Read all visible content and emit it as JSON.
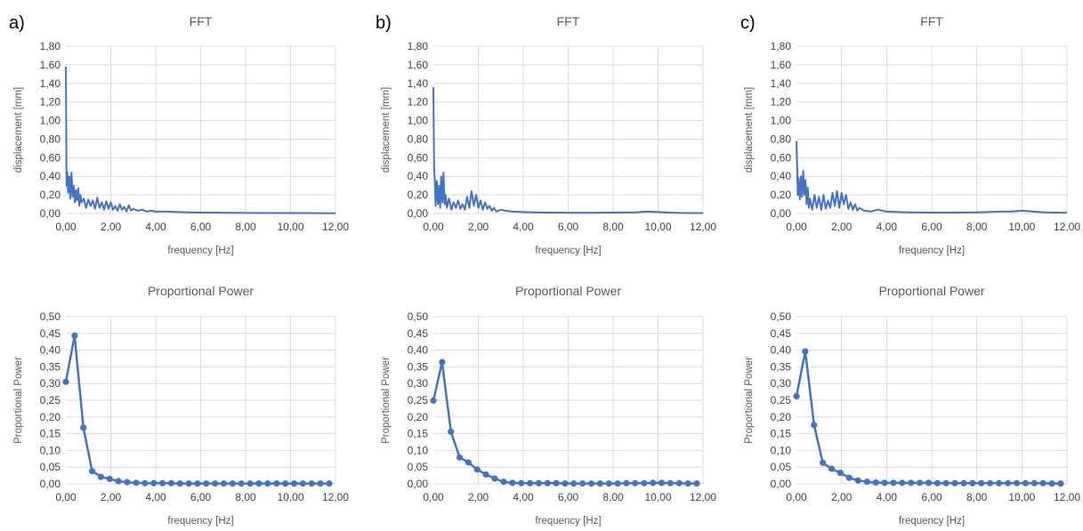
{
  "panel_labels": [
    "a)",
    "b)",
    "c)"
  ],
  "colors": {
    "series": "#4472c4",
    "grid": "#d9d9d9",
    "text": "#595959"
  },
  "chart_data": [
    {
      "panel": "a)",
      "type": "line",
      "title": "FFT",
      "xlabel": "frequency [Hz]",
      "ylabel": "displacement [mm]",
      "xlim": [
        0,
        12
      ],
      "ylim": [
        0,
        1.8
      ],
      "xstep": 2,
      "ystep": 0.2,
      "xticks": [
        "0,00",
        "2,00",
        "4,00",
        "6,00",
        "8,00",
        "10,00",
        "12,00"
      ],
      "yticks": [
        "0,00",
        "0,20",
        "0,40",
        "0,60",
        "0,80",
        "1,00",
        "1,20",
        "1,40",
        "1,60",
        "1,80"
      ],
      "grid": true,
      "legend": "none",
      "markers": false,
      "series": [
        {
          "x": [
            0,
            0.03,
            0.06,
            0.1,
            0.15,
            0.2,
            0.25,
            0.3,
            0.35,
            0.4,
            0.45,
            0.5,
            0.55,
            0.6,
            0.65,
            0.7,
            0.8,
            0.9,
            1,
            1.1,
            1.2,
            1.3,
            1.4,
            1.5,
            1.6,
            1.7,
            1.8,
            1.9,
            2,
            2.1,
            2.2,
            2.3,
            2.4,
            2.5,
            2.6,
            2.7,
            2.8,
            2.9,
            3,
            3.2,
            3.4,
            3.6,
            3.8,
            4,
            4.5,
            5,
            5.5,
            6,
            6.5,
            7,
            8,
            9,
            10,
            11,
            12
          ],
          "y": [
            1.58,
            0.3,
            0.45,
            0.22,
            0.4,
            0.16,
            0.44,
            0.18,
            0.3,
            0.12,
            0.25,
            0.14,
            0.27,
            0.08,
            0.2,
            0.12,
            0.16,
            0.06,
            0.15,
            0.08,
            0.14,
            0.05,
            0.17,
            0.06,
            0.12,
            0.04,
            0.13,
            0.05,
            0.12,
            0.04,
            0.08,
            0.03,
            0.1,
            0.04,
            0.07,
            0.02,
            0.09,
            0.03,
            0.05,
            0.03,
            0.04,
            0.02,
            0.03,
            0.02,
            0.02,
            0.015,
            0.012,
            0.01,
            0.01,
            0.008,
            0.006,
            0.005,
            0.005,
            0.004,
            0.003
          ]
        }
      ]
    },
    {
      "panel": "b)",
      "type": "line",
      "title": "FFT",
      "xlabel": "frequency [Hz]",
      "ylabel": "displacement [mm]",
      "xlim": [
        0,
        12
      ],
      "ylim": [
        0,
        1.8
      ],
      "xstep": 2,
      "ystep": 0.2,
      "xticks": [
        "0,00",
        "2,00",
        "4,00",
        "6,00",
        "8,00",
        "10,00",
        "12,00"
      ],
      "yticks": [
        "0,00",
        "0,20",
        "0,40",
        "0,60",
        "0,80",
        "1,00",
        "1,20",
        "1,40",
        "1,60",
        "1,80"
      ],
      "grid": true,
      "legend": "none",
      "markers": false,
      "series": [
        {
          "x": [
            0,
            0.03,
            0.06,
            0.1,
            0.15,
            0.2,
            0.25,
            0.3,
            0.35,
            0.4,
            0.45,
            0.5,
            0.55,
            0.6,
            0.7,
            0.8,
            0.9,
            1,
            1.1,
            1.2,
            1.3,
            1.4,
            1.5,
            1.6,
            1.7,
            1.8,
            1.9,
            2,
            2.1,
            2.2,
            2.3,
            2.4,
            2.5,
            2.6,
            2.7,
            2.8,
            3,
            3.2,
            3.5,
            4,
            4.5,
            5,
            6,
            7,
            8,
            9,
            9.5,
            10,
            10.5,
            11,
            12
          ],
          "y": [
            1.36,
            0.5,
            0.38,
            0.08,
            0.35,
            0.1,
            0.3,
            0.06,
            0.4,
            0.12,
            0.44,
            0.1,
            0.2,
            0.06,
            0.16,
            0.04,
            0.12,
            0.06,
            0.14,
            0.05,
            0.1,
            0.04,
            0.18,
            0.06,
            0.24,
            0.08,
            0.2,
            0.06,
            0.14,
            0.04,
            0.12,
            0.05,
            0.08,
            0.03,
            0.06,
            0.02,
            0.04,
            0.03,
            0.02,
            0.015,
            0.012,
            0.01,
            0.008,
            0.008,
            0.01,
            0.012,
            0.02,
            0.015,
            0.01,
            0.006,
            0.004
          ]
        }
      ]
    },
    {
      "panel": "c)",
      "type": "line",
      "title": "FFT",
      "xlabel": "frequency [Hz]",
      "ylabel": "displacement [mm]",
      "xlim": [
        0,
        12
      ],
      "ylim": [
        0,
        1.8
      ],
      "xstep": 2,
      "ystep": 0.2,
      "xticks": [
        "0,00",
        "2,00",
        "4,00",
        "6,00",
        "8,00",
        "10,00",
        "12,00"
      ],
      "yticks": [
        "0,00",
        "0,20",
        "0,40",
        "0,60",
        "0,80",
        "1,00",
        "1,20",
        "1,40",
        "1,60",
        "1,80"
      ],
      "grid": true,
      "legend": "none",
      "markers": false,
      "series": [
        {
          "x": [
            0,
            0.03,
            0.06,
            0.1,
            0.15,
            0.2,
            0.25,
            0.3,
            0.35,
            0.4,
            0.45,
            0.5,
            0.55,
            0.6,
            0.7,
            0.8,
            0.9,
            1,
            1.1,
            1.2,
            1.3,
            1.4,
            1.5,
            1.6,
            1.7,
            1.8,
            1.9,
            2,
            2.1,
            2.2,
            2.3,
            2.4,
            2.5,
            2.6,
            2.7,
            2.8,
            3,
            3.3,
            3.6,
            4,
            4.5,
            5,
            6,
            7,
            8,
            8.5,
            9,
            9.5,
            10,
            10.5,
            11,
            12
          ],
          "y": [
            0.78,
            0.5,
            0.2,
            0.38,
            0.15,
            0.4,
            0.18,
            0.46,
            0.2,
            0.36,
            0.1,
            0.28,
            0.06,
            0.16,
            0.04,
            0.2,
            0.06,
            0.18,
            0.04,
            0.2,
            0.05,
            0.14,
            0.06,
            0.22,
            0.08,
            0.24,
            0.06,
            0.22,
            0.1,
            0.2,
            0.05,
            0.12,
            0.04,
            0.1,
            0.03,
            0.06,
            0.03,
            0.02,
            0.04,
            0.02,
            0.015,
            0.012,
            0.01,
            0.01,
            0.012,
            0.015,
            0.02,
            0.02,
            0.03,
            0.02,
            0.012,
            0.008
          ]
        }
      ]
    },
    {
      "panel": "a)",
      "type": "line",
      "title": "Proportional Power",
      "xlabel": "frequency [Hz]",
      "ylabel": "Proportional Power",
      "xlim": [
        0,
        12
      ],
      "ylim": [
        0,
        0.5
      ],
      "xstep": 2,
      "ystep": 0.05,
      "xticks": [
        "0,00",
        "2,00",
        "4,00",
        "6,00",
        "8,00",
        "10,00",
        "12,00"
      ],
      "yticks": [
        "0,00",
        "0,05",
        "0,10",
        "0,15",
        "0,20",
        "0,25",
        "0,30",
        "0,35",
        "0,40",
        "0,45",
        "0,50"
      ],
      "grid": true,
      "legend": "none",
      "markers": true,
      "series": [
        {
          "x": [
            0,
            0.39,
            0.78,
            1.17,
            1.56,
            1.95,
            2.34,
            2.73,
            3.13,
            3.52,
            3.91,
            4.3,
            4.69,
            5.08,
            5.47,
            5.86,
            6.25,
            6.64,
            7.03,
            7.42,
            7.81,
            8.2,
            8.59,
            8.98,
            9.38,
            9.77,
            10.16,
            10.55,
            10.94,
            11.33,
            11.72
          ],
          "y": [
            0.305,
            0.443,
            0.168,
            0.038,
            0.021,
            0.015,
            0.008,
            0.005,
            0.003,
            0.002,
            0.002,
            0.002,
            0.002,
            0.001,
            0.001,
            0.001,
            0.001,
            0.001,
            0.001,
            0.001,
            0.001,
            0.001,
            0.001,
            0.001,
            0.001,
            0.001,
            0.001,
            0.001,
            0.001,
            0.001,
            0.001
          ]
        }
      ]
    },
    {
      "panel": "b)",
      "type": "line",
      "title": "Proportional Power",
      "xlabel": "frequency [Hz]",
      "ylabel": "Proportional Power",
      "xlim": [
        0,
        12
      ],
      "ylim": [
        0,
        0.5
      ],
      "xstep": 2,
      "ystep": 0.05,
      "xticks": [
        "0,00",
        "2,00",
        "4,00",
        "6,00",
        "8,00",
        "10,00",
        "12,00"
      ],
      "yticks": [
        "0,00",
        "0,05",
        "0,10",
        "0,15",
        "0,20",
        "0,25",
        "0,30",
        "0,35",
        "0,40",
        "0,45",
        "0,50"
      ],
      "grid": true,
      "legend": "none",
      "markers": true,
      "series": [
        {
          "x": [
            0,
            0.39,
            0.78,
            1.17,
            1.56,
            1.95,
            2.34,
            2.73,
            3.13,
            3.52,
            3.91,
            4.3,
            4.69,
            5.08,
            5.47,
            5.86,
            6.25,
            6.64,
            7.03,
            7.42,
            7.81,
            8.2,
            8.59,
            8.98,
            9.38,
            9.77,
            10.16,
            10.55,
            10.94,
            11.33,
            11.72
          ],
          "y": [
            0.249,
            0.364,
            0.156,
            0.079,
            0.064,
            0.043,
            0.028,
            0.016,
            0.006,
            0.003,
            0.002,
            0.002,
            0.002,
            0.002,
            0.002,
            0.001,
            0.001,
            0.001,
            0.001,
            0.001,
            0.001,
            0.001,
            0.002,
            0.002,
            0.002,
            0.003,
            0.003,
            0.002,
            0.002,
            0.001,
            0.001
          ]
        }
      ]
    },
    {
      "panel": "c)",
      "type": "line",
      "title": "Proportional Power",
      "xlabel": "frequency [Hz]",
      "ylabel": "Proportional Power",
      "xlim": [
        0,
        12
      ],
      "ylim": [
        0,
        0.5
      ],
      "xstep": 2,
      "ystep": 0.05,
      "xticks": [
        "0,00",
        "2,00",
        "4,00",
        "6,00",
        "8,00",
        "10,00",
        "12,00"
      ],
      "yticks": [
        "0,00",
        "0,05",
        "0,10",
        "0,15",
        "0,20",
        "0,25",
        "0,30",
        "0,35",
        "0,40",
        "0,45",
        "0,50"
      ],
      "grid": true,
      "legend": "none",
      "markers": true,
      "series": [
        {
          "x": [
            0,
            0.39,
            0.78,
            1.17,
            1.56,
            1.95,
            2.34,
            2.73,
            3.13,
            3.52,
            3.91,
            4.3,
            4.69,
            5.08,
            5.47,
            5.86,
            6.25,
            6.64,
            7.03,
            7.42,
            7.81,
            8.2,
            8.59,
            8.98,
            9.38,
            9.77,
            10.16,
            10.55,
            10.94,
            11.33,
            11.72
          ],
          "y": [
            0.262,
            0.396,
            0.176,
            0.063,
            0.045,
            0.033,
            0.018,
            0.01,
            0.006,
            0.004,
            0.003,
            0.003,
            0.003,
            0.003,
            0.003,
            0.003,
            0.002,
            0.002,
            0.002,
            0.002,
            0.002,
            0.002,
            0.002,
            0.002,
            0.002,
            0.002,
            0.002,
            0.002,
            0.002,
            0.001,
            0.001
          ]
        }
      ]
    }
  ]
}
